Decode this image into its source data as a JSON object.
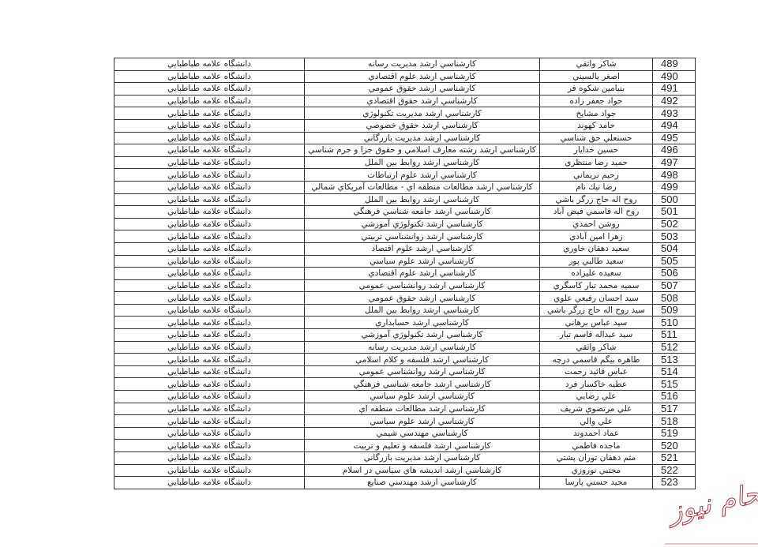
{
  "university": "دانشگاه علامه طباطبايي",
  "rows": [
    {
      "n": "489",
      "name": "شاكر واثقي",
      "degree": "كارشناسي ارشد مديريت رسانه"
    },
    {
      "n": "490",
      "name": "اصغر يالسيني",
      "degree": "كارشناسي ارشد علوم اقتصادي"
    },
    {
      "n": "491",
      "name": "بنيامين شكوه فر",
      "degree": "كارشناسي ارشد حقوق عمومي"
    },
    {
      "n": "492",
      "name": "جواد جعفر زاده",
      "degree": "كارشناسي ارشد حقوق اقتصادي"
    },
    {
      "n": "493",
      "name": "جواد مشايخ",
      "degree": "كارشناسي ارشد مديريت تكنولوژي"
    },
    {
      "n": "494",
      "name": "حامد كهوند",
      "degree": "كارشناسي ارشد  حقوق خصوصي"
    },
    {
      "n": "495",
      "name": "حسنعلي حق شناسي",
      "degree": "كارشناسي ارشد مديريت بازرگاني"
    },
    {
      "n": "496",
      "name": "حسين خدايار",
      "degree": "كارشناسي ارشد رشته معارف اسلامي و حقوق جزا و جرم شناسي"
    },
    {
      "n": "497",
      "name": "حميد رضا منتظري",
      "degree": "كارشناسي ارشد روابط بين الملل"
    },
    {
      "n": "498",
      "name": "رحيم نريماني",
      "degree": "كارشناسي ارشد علوم ارتباطات"
    },
    {
      "n": "499",
      "name": "رضا نيك نام",
      "degree": "كارشناسي ارشد مطالعات منطقه اي - مطالعات آمريكاي شمالي"
    },
    {
      "n": "500",
      "name": "روح اله حاج زرگر باشي",
      "degree": "كارشناسي ارشد روابط بين الملل"
    },
    {
      "n": "501",
      "name": "روح اله قاسمي فيض آباد",
      "degree": "كارشناسي ارشد جامعه شناسي فرهنگي"
    },
    {
      "n": "502",
      "name": "روشن احمدي",
      "degree": "كارشناسي ارشد تكنولوژي آموزشي"
    },
    {
      "n": "503",
      "name": "زهرا امين آبادي",
      "degree": "كارشناسي ارشد روانشناسي تربيتي"
    },
    {
      "n": "504",
      "name": "سعيد دهقان خاوري",
      "degree": "كارشناسي ارشد علوم اقتصاد"
    },
    {
      "n": "505",
      "name": "سعيد طالبي پور",
      "degree": "كارشناسي ارشد علوم سياسي"
    },
    {
      "n": "506",
      "name": "سعيده عليزاده",
      "degree": "كارشناسي ارشد علوم اقتصادي"
    },
    {
      "n": "507",
      "name": "سميه محمد تبار كاسگري",
      "degree": "كارشناسي ارشد روانشناسي عمومي"
    },
    {
      "n": "508",
      "name": "سيد احسان رفيعي علوي",
      "degree": "كارشناسي ارشد حقوق عمومي"
    },
    {
      "n": "509",
      "name": "سيد روح اله حاج زرگر باشي",
      "degree": "كارشناسي ارشد روابط بين الملل"
    },
    {
      "n": "510",
      "name": "سيد عباس برهاني",
      "degree": "كارشناسي ارشد حسابداري"
    },
    {
      "n": "511",
      "name": "سيد عبداله قاسم تبار",
      "degree": "كارشناسي ارشد تكنولوژي آموزشي"
    },
    {
      "n": "512",
      "name": "شاكر واثقي",
      "degree": "كارشناسي ارشد مديريت رسانه"
    },
    {
      "n": "513",
      "name": "طاهره بيگم قاسمي درچه",
      "degree": "كارشناسي ارشد فلسفه و كلام اسلامي"
    },
    {
      "n": "514",
      "name": "عباس قائيد رحمت",
      "degree": "كارشناسي ارشد روانشناسي عمومي"
    },
    {
      "n": "515",
      "name": "عطيه خاكسار فرد",
      "degree": "كارشناسي ارشد جامعه شناسي فرهنگي"
    },
    {
      "n": "516",
      "name": "علي رضايي",
      "degree": "كارشناسي ارشد علوم سياسي"
    },
    {
      "n": "517",
      "name": "علي مرتضوي شريف",
      "degree": "كارشناسي ارشد مطالعات منطقه اي"
    },
    {
      "n": "518",
      "name": "علي والي",
      "degree": "كارشناسي ارشد علوم سياسي"
    },
    {
      "n": "519",
      "name": "عماد احمدوند",
      "degree": "كارشناسي مهندسي شيمي"
    },
    {
      "n": "520",
      "name": "ماجده فاطمي",
      "degree": "كارشناسي ارشد فلسفه و تعليم و تربيت"
    },
    {
      "n": "521",
      "name": "مثم دهقان توران پشتي",
      "degree": "كارشناسي ارشد مديريت بازرگاني"
    },
    {
      "n": "522",
      "name": "مجتبي نوروزي",
      "degree": "كارشناسي ارشد انديشه هاي سياسي در اسلام"
    },
    {
      "n": "523",
      "name": "مجيد حسني پارسا",
      "degree": "كارشناسي ارشد مهندسي صنايع"
    }
  ],
  "watermark": "سحام نیوز",
  "colors": {
    "watermark": "#b0303a",
    "border": "#333333"
  }
}
